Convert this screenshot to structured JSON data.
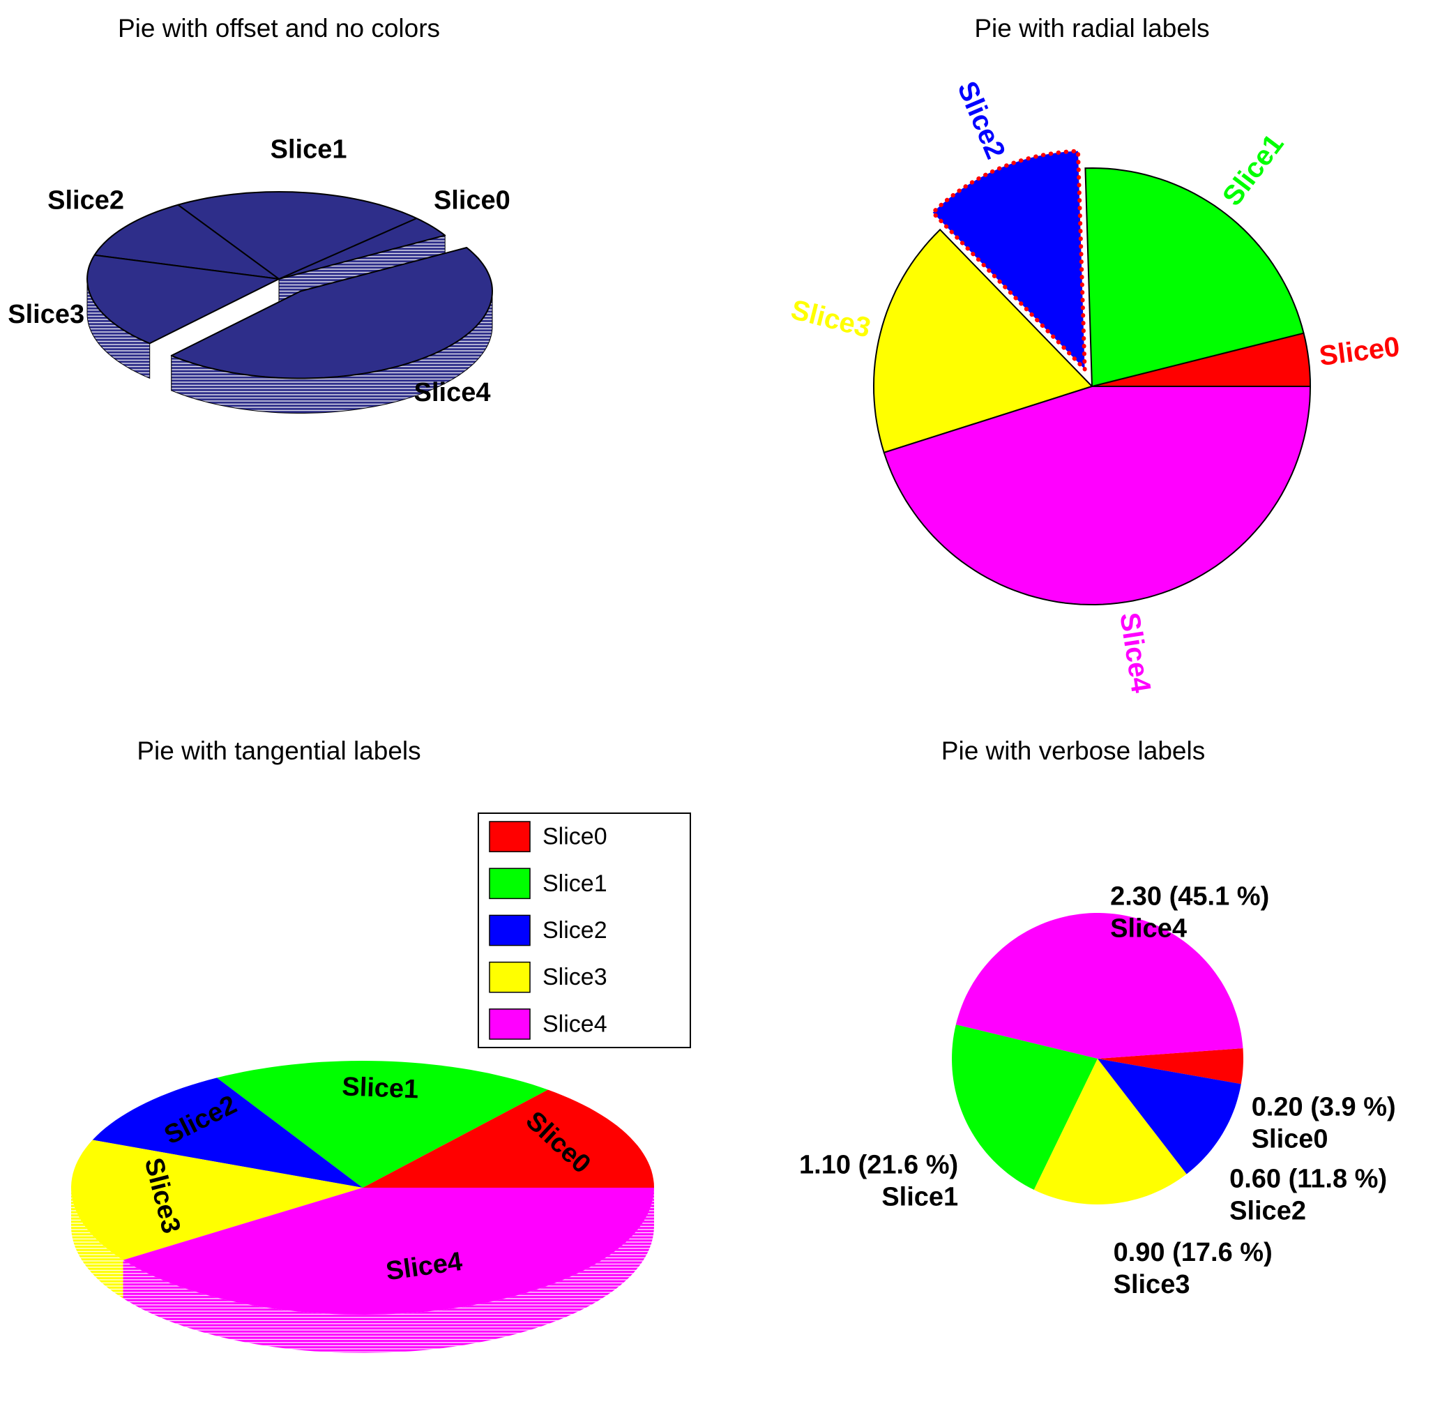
{
  "chart_data": [
    {
      "type": "pie",
      "variant": "3d-exploded",
      "title": "Pie with offset and no colors",
      "labels": [
        "Slice0",
        "Slice1",
        "Slice2",
        "Slice3",
        "Slice4"
      ],
      "values": [
        0.2,
        1.1,
        0.6,
        0.9,
        2.3
      ],
      "slice_color": "#2e2e8a",
      "outline_color": "#000000",
      "label_color": "#000000",
      "start_angle_deg": 30,
      "exploded_slice": "Slice4",
      "legend": false
    },
    {
      "type": "pie",
      "variant": "2d-exploded",
      "title": "Pie with radial labels",
      "labels": [
        "Slice0",
        "Slice1",
        "Slice2",
        "Slice3",
        "Slice4"
      ],
      "values": [
        0.2,
        1.1,
        0.6,
        0.9,
        2.3
      ],
      "colors": [
        "#ff0000",
        "#00ff00",
        "#0000ff",
        "#ffff00",
        "#ff00ff"
      ],
      "label_style": "radial, colored like slice",
      "start_angle_deg": 0,
      "exploded_slice": "Slice2",
      "exploded_outline": {
        "color": "#ff0000",
        "style": "dotted",
        "width": 6
      },
      "legend": false
    },
    {
      "type": "pie",
      "variant": "3d",
      "title": "Pie with tangential labels",
      "labels": [
        "Slice0",
        "Slice1",
        "Slice2",
        "Slice3",
        "Slice4"
      ],
      "values": [
        0.8,
        1.1,
        0.6,
        0.9,
        2.3
      ],
      "colors": [
        "#ff0000",
        "#00ff00",
        "#0000ff",
        "#ffff00",
        "#ff00ff"
      ],
      "label_style": "tangential, black, on slice",
      "label_color": "#000000",
      "start_angle_deg": 0,
      "legend": {
        "position": "top-right",
        "items": [
          "Slice0",
          "Slice1",
          "Slice2",
          "Slice3",
          "Slice4"
        ]
      }
    },
    {
      "type": "pie",
      "variant": "2d",
      "title": "Pie with verbose labels",
      "labels": [
        "Slice0",
        "Slice1",
        "Slice2",
        "Slice3",
        "Slice4"
      ],
      "values": [
        0.2,
        1.1,
        0.6,
        0.9,
        2.3
      ],
      "percentages": [
        3.9,
        21.6,
        11.8,
        17.6,
        45.1
      ],
      "value_labels": [
        "0.20 (3.9 %)",
        "1.10 (21.6 %)",
        "0.60 (11.8 %)",
        "0.90 (17.6 %)",
        "2.30 (45.1 %)"
      ],
      "colors": [
        "#ff0000",
        "#00ff00",
        "#0000ff",
        "#ffff00",
        "#ff00ff"
      ],
      "label_color": "#000000",
      "slice_order_ccw": [
        0,
        4,
        1,
        3,
        2
      ],
      "start_angle_deg": -10,
      "label_style": "verbose two-line black",
      "legend": false
    }
  ]
}
